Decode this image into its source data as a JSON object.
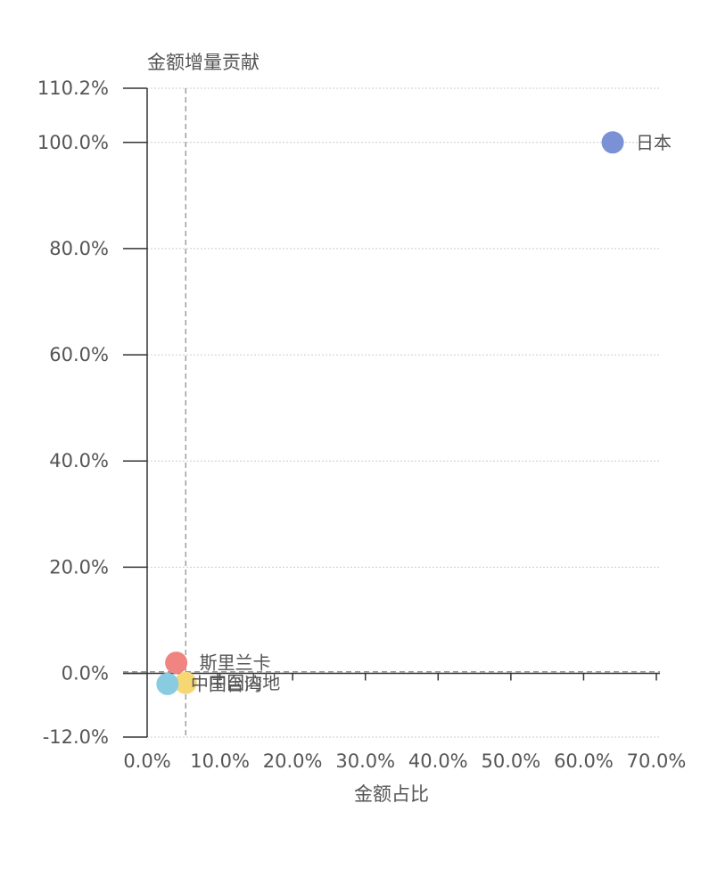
{
  "chart_data": {
    "type": "scatter",
    "title": "",
    "xlabel": "金额占比",
    "ylabel": "金额增量贡献",
    "xlim": [
      0,
      70
    ],
    "ylim": [
      -12,
      110.2
    ],
    "x_ticks": [
      "0.0%",
      "10.0%",
      "20.0%",
      "30.0%",
      "40.0%",
      "50.0%",
      "60.0%",
      "70.0%"
    ],
    "x_tick_values": [
      0,
      10,
      20,
      30,
      40,
      50,
      60,
      70
    ],
    "y_ticks": [
      "110.2%",
      "100.0%",
      "80.0%",
      "60.0%",
      "40.0%",
      "20.0%",
      "0.0%",
      "-12.0%"
    ],
    "y_tick_values": [
      110.2,
      100,
      80,
      60,
      40,
      20,
      0,
      -12
    ],
    "grid": true,
    "reference_lines": {
      "x": 5.3,
      "y": 0.3
    },
    "points": [
      {
        "name": "日本",
        "x": 64.0,
        "y": 100.0,
        "color": "#7b91d6"
      },
      {
        "name": "斯里兰卡",
        "x": 4.0,
        "y": 2.0,
        "color": "#ef8481"
      },
      {
        "name": "中国内地",
        "x": 5.3,
        "y": -1.8,
        "color": "#f7d774"
      },
      {
        "name": "中国台湾",
        "x": 2.8,
        "y": -2.0,
        "color": "#89cce2"
      }
    ]
  }
}
